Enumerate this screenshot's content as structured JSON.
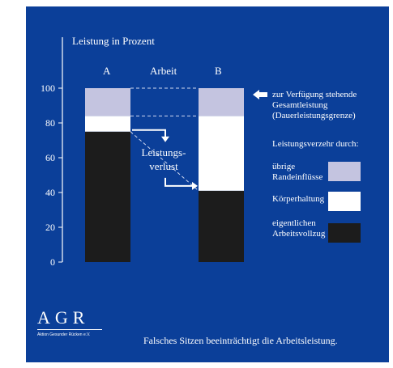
{
  "chart_data": {
    "type": "bar",
    "stacked": true,
    "ylabel": "Leistung in Prozent",
    "xlabel": "Arbeit",
    "categories": [
      "A",
      "B"
    ],
    "ylim": [
      0,
      100
    ],
    "yticks": [
      "0",
      "20",
      "40",
      "60",
      "80",
      "100"
    ],
    "series": [
      {
        "name": "eigentlichen Arbeitsvollzug",
        "values": [
          75,
          41
        ],
        "color": "#1c1c1c"
      },
      {
        "name": "Körperhaltung",
        "values": [
          9,
          43
        ],
        "color": "#ffffff"
      },
      {
        "name": "übrige Randeinflüsse",
        "values": [
          16,
          16
        ],
        "color": "#c4c4e0"
      }
    ],
    "annotations": {
      "capacity": "zur Verfügung stehende Gesamtleistung (Dauerleistungsgrenze)",
      "loss": "Leistungs-verlust"
    },
    "legend_title": "Leistungsverzehr durch:",
    "grid": false,
    "legend_position": "right"
  },
  "logo": {
    "text": "AGR",
    "subtitle": "Aktion Gesunder Rücken e.V."
  },
  "footer": "Falsches Sitzen beeinträchtigt die Arbeitsleistung.",
  "colors": {
    "background": "#0b3f99",
    "text": "#ffffff"
  }
}
